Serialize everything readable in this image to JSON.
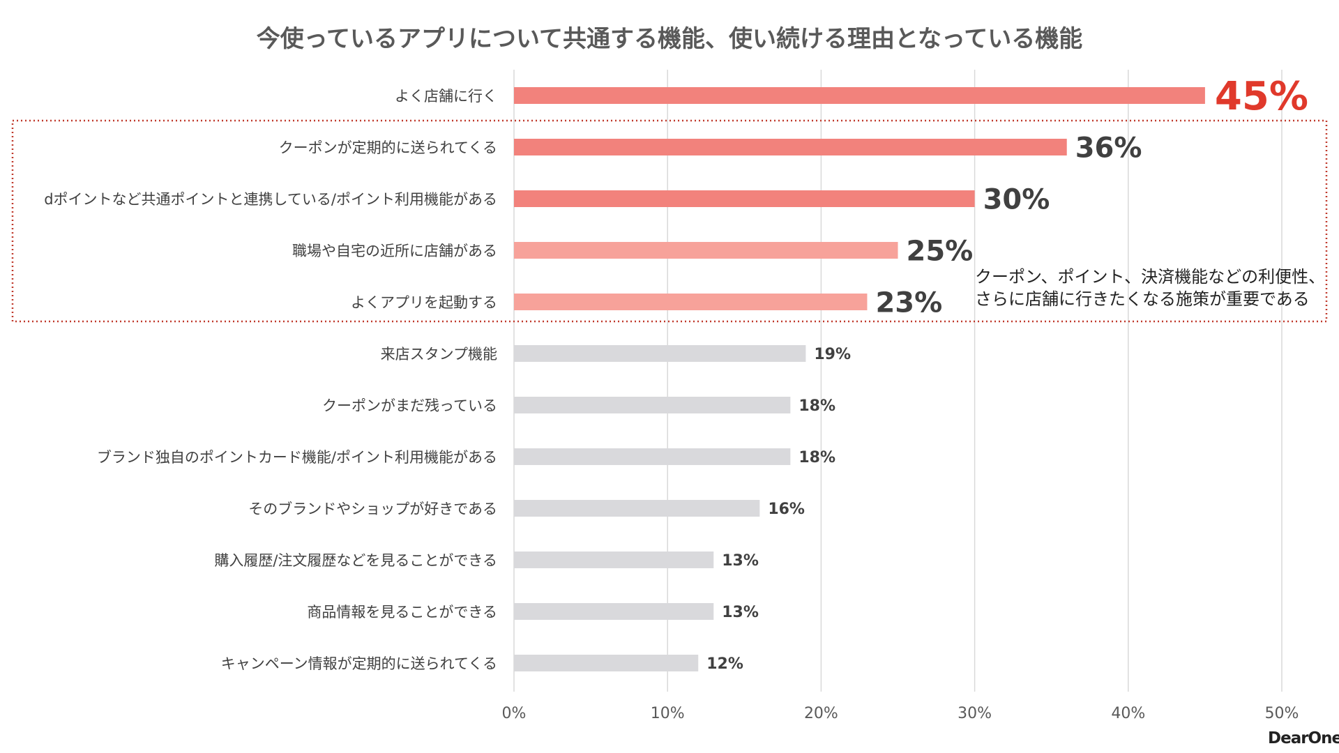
{
  "title": "今使っているアプリについて共通する機能、使い続ける理由となっている機能",
  "annotation": {
    "lines": [
      "クーポン、ポイント、決済機能などの利便性、",
      "さらに店舗に行きたくなる施策が重要である"
    ]
  },
  "brand": "DearOne",
  "colors": {
    "bar_top": "#f2827c",
    "bar_mid": "#f7a29a",
    "bar_rest": "#d9d9dc",
    "highlight_label": "#e0392b",
    "label_dark": "#404040",
    "box_border": "#c0392b"
  },
  "chart_data": {
    "type": "bar",
    "orientation": "horizontal",
    "title": "今使っているアプリについて共通する機能、使い続ける理由となっている機能",
    "categories": [
      "よく店舗に行く",
      "クーポンが定期的に送られてくる",
      "dポイントなど共通ポイントと連携している/ポイント利用機能がある",
      "職場や自宅の近所に店舗がある",
      "よくアプリを起動する",
      "来店スタンプ機能",
      "クーポンがまだ残っている",
      "ブランド独自のポイントカード機能/ポイント利用機能がある",
      "そのブランドやショップが好きである",
      "購入履歴/注文履歴などを見ることができる",
      "商品情報を見ることができる",
      "キャンペーン情報が定期的に送られてくる"
    ],
    "values": [
      45,
      36,
      30,
      25,
      23,
      19,
      18,
      18,
      16,
      13,
      13,
      12
    ],
    "value_labels": [
      "45%",
      "36%",
      "30%",
      "25%",
      "23%",
      "19%",
      "18%",
      "18%",
      "16%",
      "13%",
      "13%",
      "12%"
    ],
    "xlim": [
      0,
      50
    ],
    "xticks": [
      0,
      10,
      20,
      30,
      40,
      50
    ],
    "xtick_labels": [
      "0%",
      "10%",
      "20%",
      "30%",
      "40%",
      "50%"
    ],
    "grid": true,
    "highlighted_range": [
      1,
      4
    ]
  }
}
